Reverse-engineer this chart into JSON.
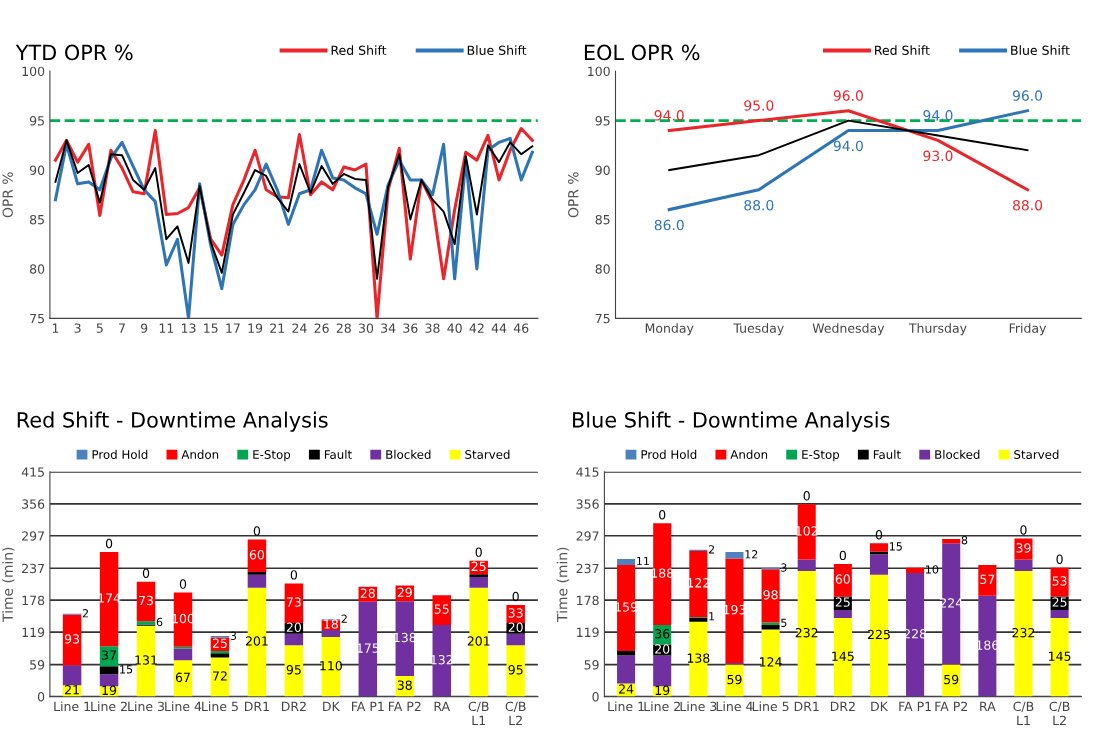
{
  "chart_data": [
    {
      "type": "line",
      "title": "YTD OPR %",
      "ylabel": "OPR %",
      "legend": "top right",
      "grid": false,
      "line_style": "solid",
      "marker": "none",
      "categories": [
        "1",
        null,
        "3",
        null,
        "5",
        null,
        "7",
        null,
        "9",
        null,
        "11",
        null,
        "13",
        null,
        "15",
        null,
        "17",
        null,
        "19",
        null,
        "21",
        null,
        "24",
        null,
        "26",
        null,
        "28",
        null,
        "30",
        null,
        "34",
        null,
        "36",
        null,
        "38",
        null,
        "40",
        null,
        "42",
        null,
        "44",
        null,
        "46",
        null
      ],
      "ylim": [
        75,
        100
      ],
      "yticks": [
        75,
        80,
        85,
        90,
        95,
        100
      ],
      "ref_lines": [
        {
          "axis": "y",
          "value": 95,
          "color": "#00b050",
          "line_style": "dashed"
        }
      ],
      "series": [
        {
          "name": "Red Shift",
          "color": "#e8262b",
          "values": [
            91,
            93,
            90.8,
            92.6,
            85.4,
            92,
            90.2,
            87.8,
            87.6,
            94,
            85.5,
            85.6,
            86.2,
            88.2,
            83,
            81.4,
            86.5,
            89,
            92,
            88,
            87.3,
            87.2,
            93.6,
            87.5,
            88.8,
            88,
            90.3,
            90,
            90.6,
            75,
            88,
            92.2,
            81,
            89,
            86.7,
            79,
            86,
            91.8,
            91,
            93.5,
            89,
            92,
            94.2,
            93
          ]
        },
        {
          "name": "Blue Shift",
          "color": "#2e75b6",
          "values": [
            87,
            92.6,
            88.6,
            88.8,
            88,
            91.2,
            92.8,
            90.4,
            88,
            86.8,
            80.4,
            83,
            75,
            88.6,
            82.4,
            78,
            84.5,
            86.5,
            88,
            90.6,
            88,
            84.5,
            87.6,
            88,
            92,
            89.2,
            89,
            88.2,
            87.6,
            83.5,
            88.5,
            91,
            89,
            89,
            87.5,
            92.6,
            79,
            91,
            80,
            92,
            92.8,
            93.2,
            89,
            91.8
          ]
        },
        {
          "color": "#000000",
          "values": [
            88.8,
            93,
            89.7,
            90.5,
            86.7,
            91.6,
            91.5,
            89,
            88,
            90.2,
            83,
            84.3,
            80.6,
            88.4,
            82.7,
            79.6,
            85.5,
            87.7,
            90,
            89.4,
            87.2,
            85.8,
            90.6,
            87.7,
            90.4,
            88.6,
            89.6,
            89.1,
            89,
            79,
            88.3,
            91.6,
            85,
            89,
            87,
            85.8,
            82.5,
            91.4,
            85.5,
            92.5,
            90.8,
            92.8,
            91.6,
            92.4
          ]
        }
      ]
    },
    {
      "type": "line",
      "title": "EOL OPR %",
      "ylabel": "OPR %",
      "legend": "top right",
      "grid": false,
      "line_style": "solid",
      "marker": "none",
      "categories": [
        "Monday",
        "Tuesday",
        "Wednesday",
        "Thursday",
        "Friday"
      ],
      "ylim": [
        75,
        100
      ],
      "yticks": [
        75,
        80,
        85,
        90,
        95,
        100
      ],
      "ref_lines": [
        {
          "axis": "y",
          "value": 95,
          "color": "#00b050",
          "line_style": "dashed"
        }
      ],
      "series": [
        {
          "name": "Red Shift",
          "color": "#e8262b",
          "values": [
            94,
            95,
            96,
            93,
            88
          ],
          "value_labels": [
            "94.0",
            "95.0",
            "96.0",
            "93.0",
            "88.0"
          ]
        },
        {
          "name": "Blue Shift",
          "color": "#2e75b6",
          "values": [
            86,
            88,
            94,
            94,
            96
          ],
          "value_labels": [
            "86.0",
            "88.0",
            "94.0",
            "94.0",
            "96.0"
          ]
        },
        {
          "color": "#000000",
          "values": [
            90,
            91.5,
            95,
            93.5,
            92
          ]
        }
      ]
    },
    {
      "type": "bar",
      "stacked": true,
      "title": "Red Shift - Downtime Analysis",
      "ylabel": "Time (min)",
      "legend": "top",
      "grid": "y",
      "categories": [
        "Line 1",
        "Line 2",
        "Line 3",
        "Line 4",
        "Line 5",
        "DR1",
        "DR2",
        "DK",
        "FA P1",
        "FA P2",
        "RA",
        "C/B\nL1",
        "C/B\nL2"
      ],
      "ylim": [
        0,
        415
      ],
      "yticks": [
        0,
        59,
        119,
        178,
        237,
        297,
        356,
        415
      ],
      "series": [
        {
          "name": "Starved",
          "color": "#ffff00",
          "values": [
            21,
            19,
            131,
            67,
            72,
            201,
            95,
            110,
            0,
            38,
            0,
            201,
            95
          ],
          "value_labels": [
            "21",
            "19",
            "131",
            "67",
            "72",
            "201",
            "95",
            "110",
            null,
            "38",
            null,
            "201",
            "95"
          ]
        },
        {
          "name": "Blocked",
          "color": "#7030a0",
          "values": [
            37,
            22,
            0,
            22,
            0,
            24,
            21,
            13,
            175,
            138,
            132,
            20,
            21
          ],
          "value_labels": [
            null,
            null,
            null,
            null,
            null,
            null,
            null,
            null,
            "175",
            "138",
            "132",
            null,
            null
          ]
        },
        {
          "name": "Fault",
          "color": "#000000",
          "values": [
            0,
            15,
            2,
            0,
            8,
            5,
            20,
            0,
            0,
            0,
            0,
            5,
            20
          ],
          "value_labels": [
            null,
            "15",
            null,
            null,
            null,
            null,
            "20",
            null,
            null,
            null,
            null,
            null,
            "20"
          ]
        },
        {
          "name": "E-Stop",
          "color": "#00a550",
          "values": [
            0,
            37,
            6,
            3,
            4,
            0,
            0,
            0,
            0,
            0,
            0,
            0,
            0
          ],
          "value_labels": [
            null,
            "37",
            "6",
            null,
            null,
            null,
            null,
            null,
            null,
            null,
            null,
            null,
            null
          ]
        },
        {
          "name": "Andon",
          "color": "#ff0000",
          "values": [
            93,
            174,
            73,
            100,
            25,
            60,
            73,
            18,
            28,
            29,
            55,
            25,
            33
          ],
          "value_labels": [
            "93",
            "174",
            "73",
            "100",
            "25",
            "60",
            "73",
            "18",
            "28",
            "29",
            "55",
            "25",
            "33"
          ]
        },
        {
          "name": "Prod Hold",
          "color": "#4f81bd",
          "values": [
            2,
            0,
            0,
            0,
            3,
            0,
            0,
            2,
            0,
            0,
            0,
            0,
            0
          ],
          "value_labels": [
            "2",
            "0",
            "0",
            "0",
            "3",
            "0",
            "0",
            "2",
            null,
            null,
            null,
            "0",
            "0"
          ]
        }
      ]
    },
    {
      "type": "bar",
      "stacked": true,
      "title": "Blue Shift - Downtime Analysis",
      "ylabel": "Time (min)",
      "legend": "top",
      "grid": "y",
      "categories": [
        "Line 1",
        "Line 2",
        "Line 3",
        "Line 4",
        "Line 5",
        "DR1",
        "DR2",
        "DK",
        "FA P1",
        "FA P2",
        "RA",
        "C/B\nL1",
        "C/B\nL2"
      ],
      "ylim": [
        0,
        415
      ],
      "yticks": [
        0,
        59,
        119,
        178,
        237,
        297,
        356,
        415
      ],
      "series": [
        {
          "name": "Starved",
          "color": "#ffff00",
          "values": [
            24,
            19,
            138,
            59,
            124,
            232,
            145,
            225,
            0,
            59,
            0,
            232,
            145
          ],
          "value_labels": [
            "24",
            "19",
            "138",
            "59",
            "124",
            "232",
            "145",
            "225",
            null,
            "59",
            null,
            "232",
            "145"
          ]
        },
        {
          "name": "Blocked",
          "color": "#7030a0",
          "values": [
            52,
            57,
            0,
            3,
            0,
            21,
            15,
            38,
            228,
            224,
            186,
            21,
            15
          ],
          "value_labels": [
            null,
            null,
            null,
            null,
            null,
            null,
            null,
            null,
            "228",
            "224",
            "186",
            null,
            null
          ]
        },
        {
          "name": "Fault",
          "color": "#000000",
          "values": [
            8,
            20,
            8,
            0,
            8,
            0,
            25,
            5,
            0,
            0,
            0,
            0,
            25
          ],
          "value_labels": [
            null,
            "20",
            null,
            null,
            null,
            null,
            "25",
            null,
            null,
            null,
            null,
            null,
            "25"
          ]
        },
        {
          "name": "E-Stop",
          "color": "#00a550",
          "values": [
            0,
            36,
            1,
            0,
            5,
            0,
            0,
            0,
            0,
            0,
            0,
            0,
            0
          ],
          "value_labels": [
            null,
            "36",
            "1",
            null,
            "5",
            null,
            null,
            null,
            null,
            null,
            null,
            null,
            null
          ]
        },
        {
          "name": "Andon",
          "color": "#ff0000",
          "values": [
            159,
            188,
            122,
            193,
            98,
            102,
            60,
            15,
            10,
            8,
            57,
            39,
            53
          ],
          "value_labels": [
            "159",
            "188",
            "122",
            "193",
            "98",
            "102",
            "60",
            "15",
            "10",
            "8",
            "57",
            "39",
            "53"
          ]
        },
        {
          "name": "Prod Hold",
          "color": "#4f81bd",
          "values": [
            11,
            0,
            2,
            12,
            3,
            0,
            0,
            0,
            0,
            0,
            0,
            0,
            0
          ],
          "value_labels": [
            "11",
            "0",
            "2",
            "12",
            "3",
            "0",
            "0",
            "0",
            null,
            null,
            null,
            "0",
            "0"
          ]
        }
      ]
    }
  ]
}
